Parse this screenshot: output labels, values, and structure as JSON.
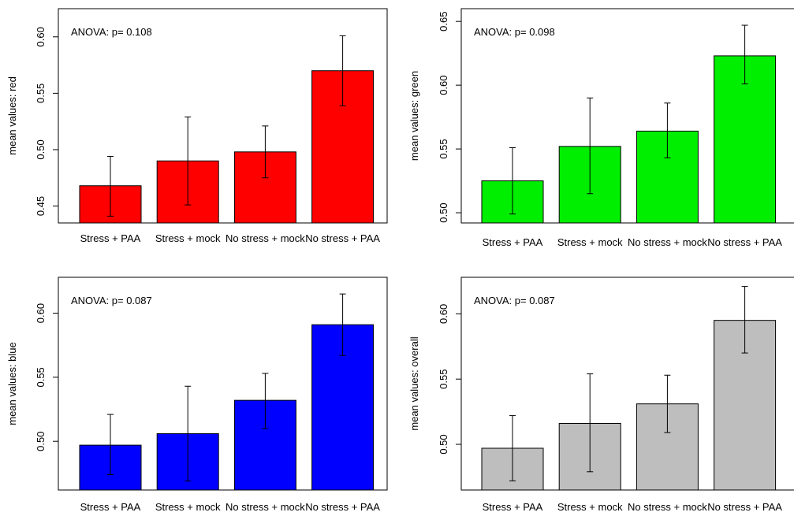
{
  "chart_data": [
    {
      "type": "bar",
      "categories": [
        "Stress + PAA",
        "Stress + mock",
        "No stress + mock",
        "No stress + PAA"
      ],
      "values": [
        0.468,
        0.49,
        0.498,
        0.57
      ],
      "error_low": [
        0.441,
        0.451,
        0.475,
        0.539
      ],
      "error_high": [
        0.494,
        0.529,
        0.521,
        0.601
      ],
      "ylabel": "mean values: red",
      "annotation": "ANOVA: p= 0.108",
      "ylim": [
        0.435,
        0.625
      ],
      "yticks": [
        0.45,
        0.5,
        0.55,
        0.6
      ],
      "ytick_labels": [
        "0.45",
        "0.50",
        "0.55",
        "0.60"
      ],
      "color": "#ff0000"
    },
    {
      "type": "bar",
      "categories": [
        "Stress + PAA",
        "Stress + mock",
        "No stress + mock",
        "No stress + PAA"
      ],
      "values": [
        0.525,
        0.552,
        0.564,
        0.623
      ],
      "error_low": [
        0.499,
        0.515,
        0.543,
        0.601
      ],
      "error_high": [
        0.551,
        0.59,
        0.586,
        0.647
      ],
      "ylabel": "mean values: green",
      "annotation": "ANOVA: p= 0.098",
      "ylim": [
        0.492,
        0.66
      ],
      "yticks": [
        0.5,
        0.55,
        0.6,
        0.65
      ],
      "ytick_labels": [
        "0.50",
        "0.55",
        "0.60",
        "0.65"
      ],
      "color": "#00ee00"
    },
    {
      "type": "bar",
      "categories": [
        "Stress + PAA",
        "Stress + mock",
        "No stress + mock",
        "No stress + PAA"
      ],
      "values": [
        0.497,
        0.506,
        0.532,
        0.591
      ],
      "error_low": [
        0.474,
        0.469,
        0.51,
        0.567
      ],
      "error_high": [
        0.521,
        0.543,
        0.553,
        0.615
      ],
      "ylabel": "mean values: blue",
      "annotation": "ANOVA: p= 0.087",
      "ylim": [
        0.462,
        0.628
      ],
      "yticks": [
        0.5,
        0.55,
        0.6
      ],
      "ytick_labels": [
        "0.50",
        "0.55",
        "0.60"
      ],
      "color": "#0000ff"
    },
    {
      "type": "bar",
      "categories": [
        "Stress + PAA",
        "Stress + mock",
        "No stress + mock",
        "No stress + PAA"
      ],
      "values": [
        0.497,
        0.516,
        0.531,
        0.595
      ],
      "error_low": [
        0.472,
        0.479,
        0.509,
        0.57
      ],
      "error_high": [
        0.522,
        0.554,
        0.553,
        0.621
      ],
      "ylabel": "mean values: overall",
      "annotation": "ANOVA: p= 0.087",
      "ylim": [
        0.465,
        0.628
      ],
      "yticks": [
        0.5,
        0.55,
        0.6
      ],
      "ytick_labels": [
        "0.50",
        "0.55",
        "0.60"
      ],
      "color": "#bebebe"
    }
  ]
}
